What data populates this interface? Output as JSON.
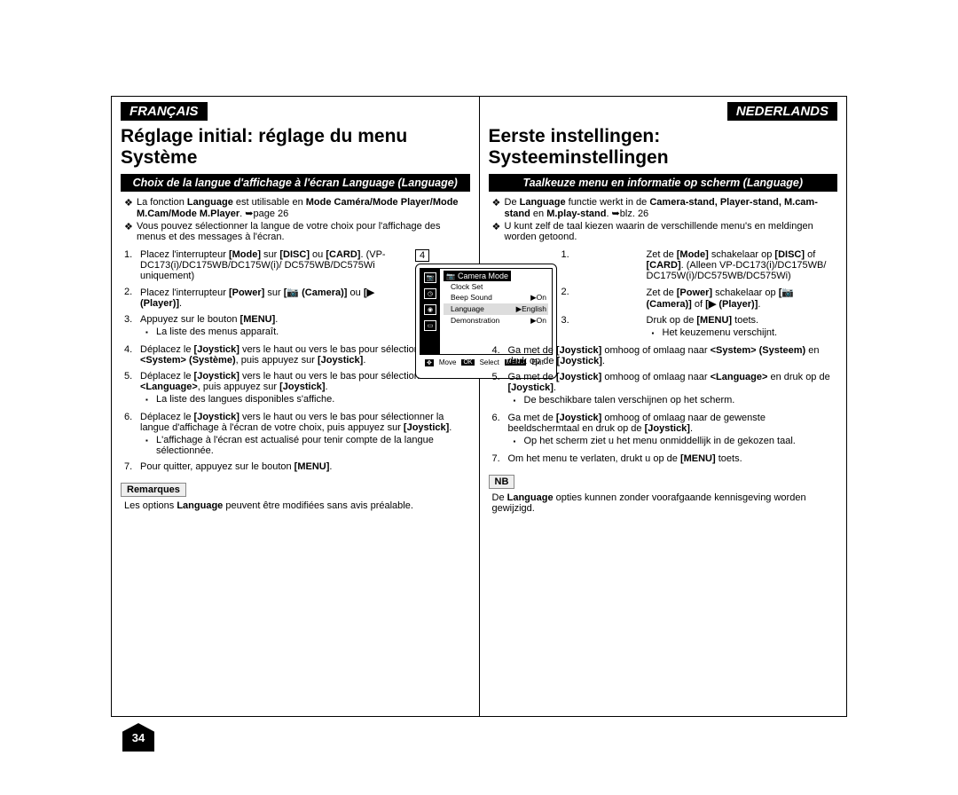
{
  "page_number": "34",
  "colors": {
    "black": "#000000",
    "white": "#ffffff",
    "grey_box": "#eeeeee"
  },
  "left": {
    "lang_tag": "FRANÇAIS",
    "main_heading": "Réglage initial: réglage du menu Système",
    "sub_heading": "Choix de la langue d'affichage à l'écran Language (Language)",
    "intro": [
      "La fonction <b>Language</b> est utilisable en <b>Mode Caméra/Mode Player/Mode M.Cam/Mode M.Player</b>. ➥page 26",
      "Vous pouvez sélectionner la langue de votre choix pour l'affichage des menus et des messages à l'écran."
    ],
    "steps": [
      {
        "n": "1.",
        "body": "Placez l'interrupteur <b>[Mode]</b> sur <b>[DISC]</b> ou <b>[CARD]</b>. (VP-DC173(i)/DC175WB/DC175W(i)/ DC575WB/DC575Wi uniquement)"
      },
      {
        "n": "2.",
        "body": "Placez l'interrupteur <b>[Power]</b> sur <b>[📷 (Camera)]</b> ou <b>[▶ (Player)]</b>."
      },
      {
        "n": "3.",
        "body": "Appuyez sur le bouton <b>[MENU]</b>.",
        "sub": [
          "La liste des menus apparaît."
        ]
      },
      {
        "n": "4.",
        "body": "Déplacez le <b>[Joystick]</b> vers le haut ou vers le bas pour sélectionner <b>&lt;System&gt; (Système)</b>, puis appuyez sur <b>[Joystick]</b>."
      },
      {
        "n": "5.",
        "body": "Déplacez le <b>[Joystick]</b> vers le haut ou vers le bas pour sélectionner <b>&lt;Language&gt;</b>, puis appuyez sur <b>[Joystick]</b>.",
        "sub": [
          "La liste des langues disponibles s'affiche."
        ]
      },
      {
        "n": "6.",
        "body": "Déplacez le <b>[Joystick]</b> vers le haut ou vers le bas pour sélectionner la langue d'affichage à l'écran de votre choix, puis appuyez sur <b>[Joystick]</b>.",
        "sub": [
          "L'affichage à l'écran est actualisé pour tenir compte de la langue sélectionnée."
        ]
      },
      {
        "n": "7.",
        "body": "Pour quitter, appuyez sur le bouton <b>[MENU]</b>."
      }
    ],
    "remark_label": "Remarques",
    "remark_text": "Les options <b>Language</b> peuvent être modifiées sans avis préalable."
  },
  "right": {
    "lang_tag": "NEDERLANDS",
    "main_heading": "Eerste instellingen: Systeeminstellingen",
    "sub_heading": "Taalkeuze menu en informatie op scherm (Language)",
    "intro": [
      "De <b>Language</b> functie werkt in de <b>Camera-stand, Player-stand, M.cam-stand</b> en <b>M.play-stand</b>. ➥blz. 26",
      "U kunt zelf de taal kiezen waarin de verschillende menu's en meldingen worden getoond."
    ],
    "steps": [
      {
        "n": "1.",
        "body": "Zet de <b>[Mode]</b> schakelaar op <b>[DISC]</b> of <b>[CARD]</b>. (Alleen VP-DC173(i)/DC175WB/ DC175W(i)/DC575WB/DC575Wi)"
      },
      {
        "n": "2.",
        "body": "Zet de <b>[Power]</b> schakelaar op <b>[📷 (Camera)]</b> of <b>[▶ (Player)]</b>."
      },
      {
        "n": "3.",
        "body": "Druk op de <b>[MENU]</b> toets.",
        "sub": [
          "Het keuzemenu verschijnt."
        ]
      },
      {
        "n": "4.",
        "body": "Ga met de <b>[Joystick]</b> omhoog of omlaag naar <b>&lt;System&gt; (Systeem)</b> en druk op de <b>[Joystick]</b>."
      },
      {
        "n": "5.",
        "body": "Ga met de <b>[Joystick]</b> omhoog of omlaag naar <b>&lt;Language&gt;</b> en druk op de <b>[Joystick]</b>.",
        "sub": [
          "De beschikbare talen verschijnen op het scherm."
        ]
      },
      {
        "n": "6.",
        "body": "Ga met de <b>[Joystick]</b> omhoog of omlaag naar de gewenste beeldschermtaal en druk op de <b>[Joystick]</b>.",
        "sub": [
          "Op het scherm ziet u het menu onmiddellijk in de gekozen taal."
        ]
      },
      {
        "n": "7.",
        "body": "Om het menu te verlaten, drukt u op de <b>[MENU]</b> toets."
      }
    ],
    "remark_label": "NB",
    "remark_text": "De <b>Language</b> opties kunnen zonder voorafgaande kennisgeving worden gewijzigd."
  },
  "lcd": {
    "step_ref": "4",
    "title": "Camera Mode",
    "rows": [
      {
        "label": "Clock Set",
        "value": ""
      },
      {
        "label": "Beep Sound",
        "value": "▶On"
      },
      {
        "label": "Language",
        "value": "▶English",
        "hl": true
      },
      {
        "label": "Demonstration",
        "value": "▶On"
      }
    ],
    "footer": {
      "move": "Move",
      "select": "Select",
      "exit": "Exit",
      "ok": "OK",
      "menu": "MENU"
    }
  }
}
